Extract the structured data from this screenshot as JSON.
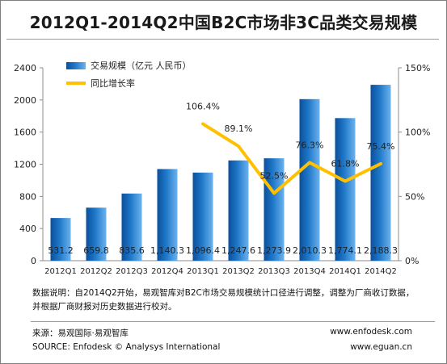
{
  "title": "2012Q1-2014Q2中国B2C市场非3C品类交易规模",
  "chart_data": {
    "type": "bar+line",
    "categories": [
      "2012Q1",
      "2012Q2",
      "2012Q3",
      "2012Q4",
      "2013Q1",
      "2013Q2",
      "2013Q3",
      "2013Q4",
      "2014Q1",
      "2014Q2"
    ],
    "bar_series": {
      "name": "交易规模（亿元 人民币）",
      "values": [
        531.2,
        659.8,
        835.6,
        1140.3,
        1096.4,
        1247.6,
        1273.9,
        2010.3,
        1774.1,
        2188.3
      ],
      "labels": [
        "531.2",
        "659.8",
        "835.6",
        "1,140.3",
        "1,096.4",
        "1,247.6",
        "1,273.9",
        "2,010.3",
        "1,774.1",
        "2,188.3"
      ],
      "color": "#1f78c8"
    },
    "line_series": {
      "name": "同比增长率",
      "start_index": 4,
      "values": [
        106.4,
        89.1,
        52.5,
        76.3,
        61.8,
        75.4
      ],
      "labels": [
        "106.4%",
        "89.1%",
        "52.5%",
        "76.3%",
        "61.8%",
        "75.4%"
      ],
      "color": "#ffc000"
    },
    "left_axis": {
      "ticks": [
        "0",
        "400",
        "800",
        "1200",
        "1600",
        "2000",
        "2400"
      ],
      "range": [
        0,
        2400
      ]
    },
    "right_axis": {
      "ticks": [
        "0%",
        "50%",
        "100%",
        "150%"
      ],
      "range": [
        0,
        150
      ]
    },
    "legend_position": "top-left"
  },
  "note": "数据说明：自2014Q2开始，易观智库对B2C市场交易规模统计口径进行调整，调整为厂商收订数据，并根据厂商财报对历史数据进行校对。",
  "source_cn": "来源：易观国际·易观智库",
  "source_en": "SOURCE: Enfodesk © Analysys International",
  "url1": "www.enfodesk.com",
  "url2": "www.eguan.cn"
}
